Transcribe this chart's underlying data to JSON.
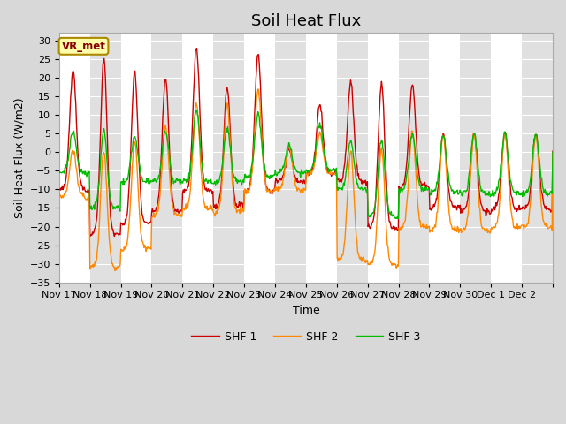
{
  "title": "Soil Heat Flux",
  "ylabel": "Soil Heat Flux (W/m2)",
  "xlabel": "Time",
  "ylim": [
    -35,
    32
  ],
  "yticks": [
    -35,
    -30,
    -25,
    -20,
    -15,
    -10,
    -5,
    0,
    5,
    10,
    15,
    20,
    25,
    30
  ],
  "colors": {
    "SHF 1": "#cc0000",
    "SHF 2": "#ff8800",
    "SHF 3": "#00bb00"
  },
  "fig_bg_color": "#d8d8d8",
  "plot_bg_white": "#ffffff",
  "plot_bg_gray": "#e0e0e0",
  "annotation_text": "VR_met",
  "annotation_bg": "#ffffaa",
  "annotation_border": "#aa8800",
  "annotation_text_color": "#880000",
  "tick_labels": [
    "Nov 17",
    "Nov 18",
    "Nov 19",
    "Nov 20",
    "Nov 21",
    "Nov 22",
    "Nov 23",
    "Nov 24",
    "Nov 25",
    "Nov 26",
    "Nov 27",
    "Nov 28",
    "Nov 29",
    "Nov 30",
    "Dec 1",
    "Dec 2"
  ],
  "title_fontsize": 13,
  "label_fontsize": 9,
  "tick_fontsize": 8,
  "legend_fontsize": 9,
  "linewidth": 1.0,
  "num_points": 768,
  "num_days": 16,
  "shf1_amps": [
    22,
    25,
    21.5,
    20,
    28,
    17.5,
    26,
    0.5,
    13,
    18.5,
    18,
    18,
    5,
    5,
    5,
    5
  ],
  "shf1_night": [
    -10,
    -22,
    -19,
    -16,
    -10.5,
    -14.5,
    -10.5,
    -8,
    -6,
    -8,
    -20,
    -9,
    -15,
    -16,
    -15,
    -15
  ],
  "shf1_peak_pos": [
    0.45,
    0.45,
    0.45,
    0.45,
    0.45,
    0.45,
    0.45,
    0.45,
    0.45,
    0.45,
    0.45,
    0.45,
    0.45,
    0.45,
    0.45,
    0.45
  ],
  "shf2_amps": [
    0.5,
    0.5,
    3,
    7,
    13,
    13,
    17,
    1.5,
    5,
    0.5,
    0.5,
    5.5,
    4.5,
    4.5,
    4.5,
    4.5
  ],
  "shf2_night": [
    -12,
    -31,
    -26,
    -17,
    -15,
    -16,
    -10.5,
    -10,
    -6,
    -29,
    -30,
    -20,
    -21,
    -21,
    -20,
    -20
  ],
  "shf3_amps": [
    5.5,
    6,
    4,
    6,
    12,
    6.5,
    10,
    2,
    7.5,
    3,
    3,
    5,
    4.5,
    5,
    5,
    5
  ],
  "shf3_night": [
    -5.5,
    -15,
    -8,
    -8,
    -8,
    -8,
    -6.5,
    -5.5,
    -5,
    -10,
    -17,
    -10,
    -11,
    -11,
    -11,
    -11
  ]
}
